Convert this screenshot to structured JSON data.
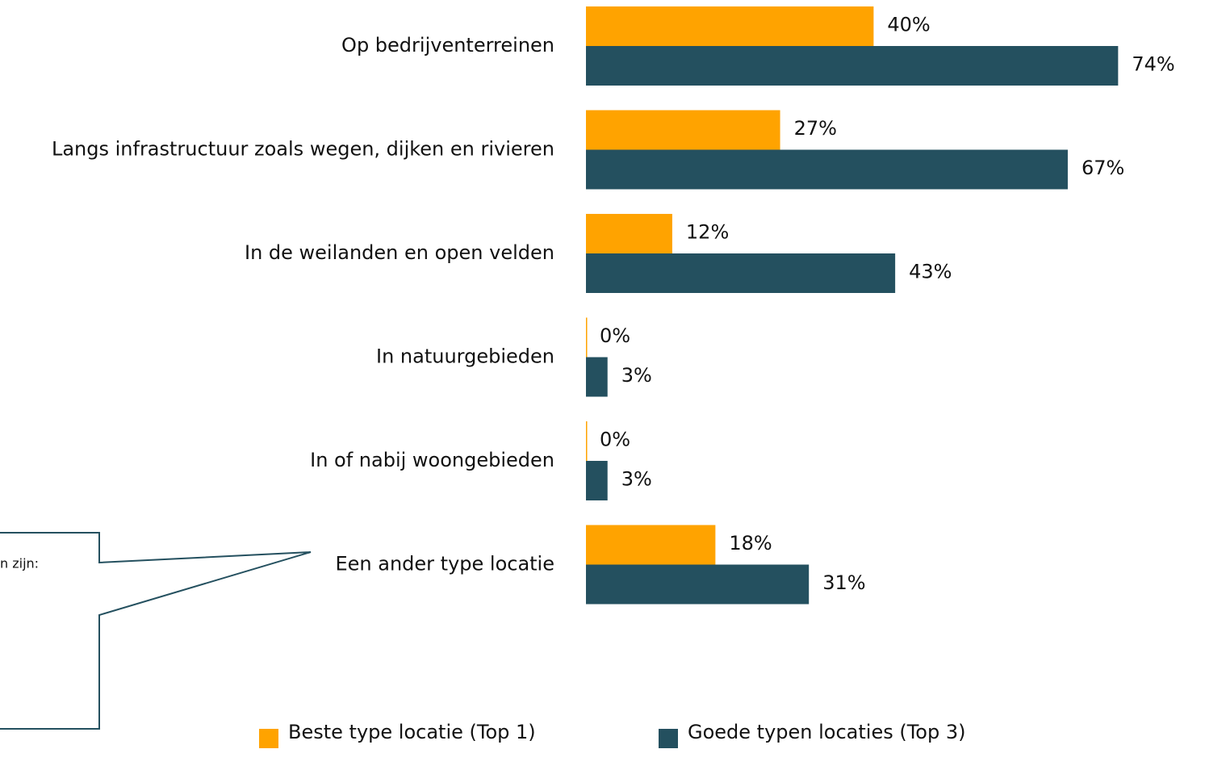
{
  "chart_data": {
    "type": "hbar",
    "categories": [
      "Op bedrijventerreinen",
      "Langs infrastructuur zoals wegen, dijken en rivieren",
      "In de weilanden en open velden",
      "In natuurgebieden",
      "In of nabij woongebieden",
      "Een ander type locatie"
    ],
    "series": [
      {
        "name": "Beste type locatie (Top 1)",
        "color": "#FFA300",
        "values": [
          40,
          27,
          12,
          0,
          0,
          18
        ],
        "value_labels": [
          "40%",
          "27%",
          "12%",
          "0%",
          "0%",
          "18%"
        ]
      },
      {
        "name": "Goede typen locaties (Top 3)",
        "color": "#24505F",
        "values": [
          74,
          67,
          43,
          3,
          3,
          31
        ],
        "value_labels": [
          "74%",
          "67%",
          "43%",
          "3%",
          "3%",
          "31%"
        ]
      }
    ],
    "annotation": "n zijn:"
  }
}
